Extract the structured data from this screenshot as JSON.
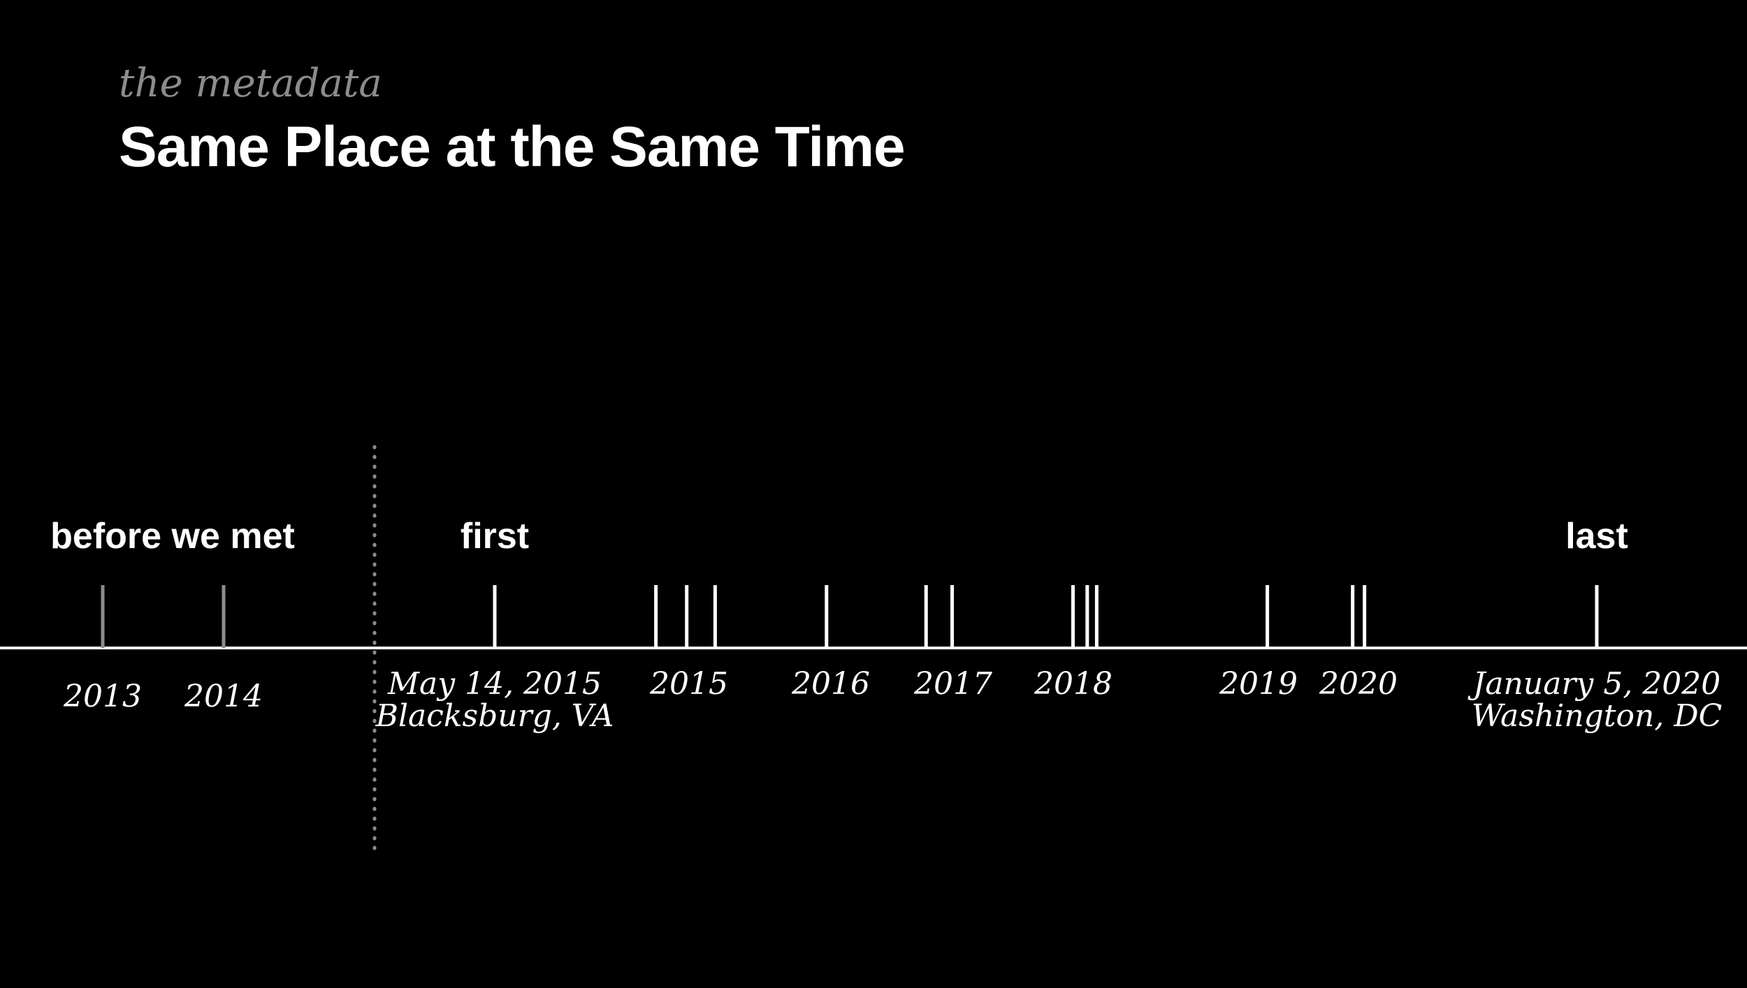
{
  "header": {
    "kicker": "the metadata",
    "title": "Same Place at the Same Time"
  },
  "colors": {
    "background": "#000000",
    "foreground": "#ffffff",
    "muted": "#8c8c8c"
  },
  "timeline": {
    "sections": {
      "before": "before we met",
      "first": "first",
      "last": "last"
    },
    "before_marks": [
      2013.5,
      2014.3
    ],
    "marks": [
      2015.37,
      2016.05,
      2016.18,
      2016.3,
      2016.77,
      2017.19,
      2017.3,
      2017.81,
      2017.87,
      2017.91,
      2018.63,
      2018.99,
      2019.04,
      2020.02
    ],
    "labels": {
      "y2013": "2013",
      "y2014": "2014",
      "first_date": "May 14, 2015",
      "first_place": "Blacksburg, VA",
      "y2015": "2015",
      "y2016": "2016",
      "y2017": "2017",
      "y2018": "2018",
      "y2019": "2019",
      "y2020": "2020",
      "last_date": "January 5, 2020",
      "last_place": "Washington, DC"
    }
  }
}
